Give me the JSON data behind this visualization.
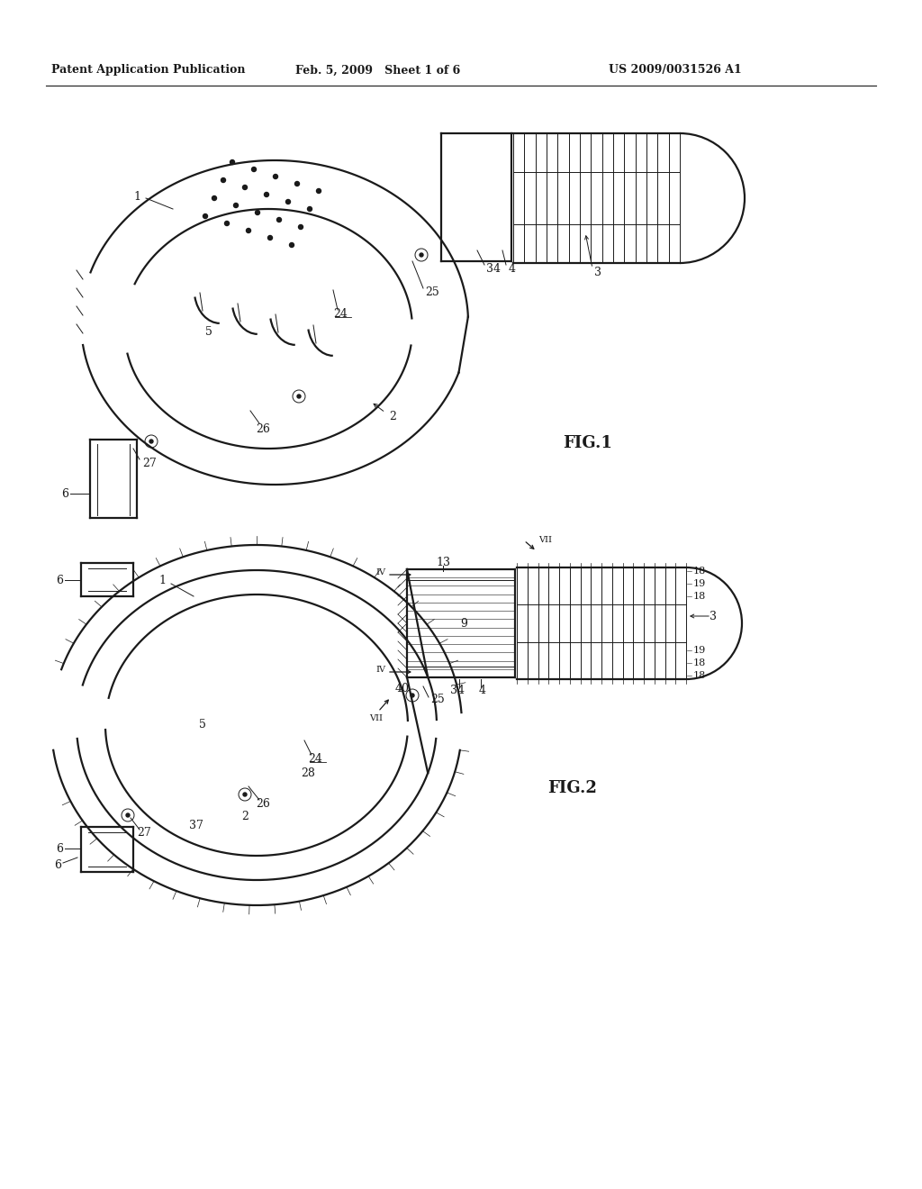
{
  "background_color": "#ffffff",
  "line_color": "#1a1a1a",
  "header_left": "Patent Application Publication",
  "header_center": "Feb. 5, 2009   Sheet 1 of 6",
  "header_right": "US 2009/0031526 A1",
  "fig1_label": "FIG.1",
  "fig2_label": "FIG.2",
  "lw_main": 1.6,
  "lw_thin": 0.7,
  "lw_hatch": 0.5,
  "font_size_header": 9,
  "font_size_label": 9,
  "font_size_fig": 13
}
